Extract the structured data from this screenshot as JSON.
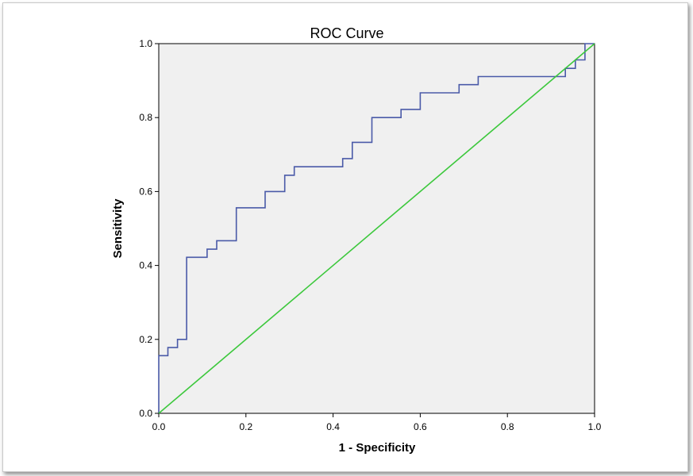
{
  "chart_data": {
    "type": "line",
    "title": "ROC Curve",
    "xlabel": "1 - Specificity",
    "ylabel": "Sensitivity",
    "xlim": [
      0,
      1
    ],
    "ylim": [
      0,
      1
    ],
    "x_ticks": [
      "0.0",
      "0.2",
      "0.4",
      "0.6",
      "0.8",
      "1.0"
    ],
    "y_ticks": [
      "0.0",
      "0.2",
      "0.4",
      "0.6",
      "0.8",
      "1.0"
    ],
    "grid": false,
    "plot_background": "#f0f0f0",
    "series": [
      {
        "color": "#4a5aa8",
        "style": "step",
        "x": [
          0.0,
          0.0,
          0.021,
          0.021,
          0.043,
          0.043,
          0.064,
          0.064,
          0.111,
          0.111,
          0.133,
          0.133,
          0.178,
          0.178,
          0.244,
          0.244,
          0.289,
          0.289,
          0.311,
          0.311,
          0.422,
          0.422,
          0.444,
          0.444,
          0.489,
          0.489,
          0.556,
          0.556,
          0.6,
          0.6,
          0.689,
          0.689,
          0.733,
          0.733,
          0.933,
          0.933,
          0.956,
          0.956,
          0.978,
          0.978,
          1.0
        ],
        "y": [
          0.0,
          0.156,
          0.156,
          0.178,
          0.178,
          0.2,
          0.2,
          0.422,
          0.422,
          0.444,
          0.444,
          0.467,
          0.467,
          0.556,
          0.556,
          0.6,
          0.6,
          0.644,
          0.644,
          0.667,
          0.667,
          0.689,
          0.689,
          0.733,
          0.733,
          0.8,
          0.8,
          0.822,
          0.822,
          0.867,
          0.867,
          0.889,
          0.889,
          0.911,
          0.911,
          0.933,
          0.933,
          0.956,
          0.956,
          1.0,
          1.0
        ]
      },
      {
        "color": "#3cc83c",
        "style": "line",
        "x": [
          0,
          1
        ],
        "y": [
          0,
          1
        ]
      }
    ]
  }
}
